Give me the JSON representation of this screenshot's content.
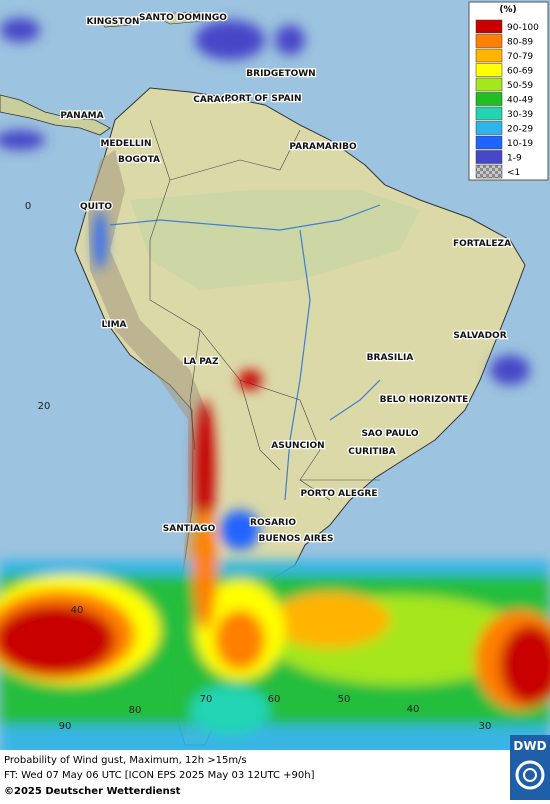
{
  "map": {
    "cities": [
      "KINGSTON",
      "SANTO DOMINGO",
      "BRIDGETOWN",
      "CARACAS",
      "PORT OF SPAIN",
      "PANAMA",
      "MEDELLIN",
      "PARAMARIBO",
      "BOGOTA",
      "QUITO",
      "FORTALEZA",
      "LIMA",
      "SALVADOR",
      "BRASILIA",
      "LA PAZ",
      "BELO HORIZONTE",
      "ASUNCION",
      "SAO PAULO",
      "CURITIBA",
      "PORTO ALEGRE",
      "ROSARIO",
      "SANTIAGO",
      "BUENOS AIRES"
    ],
    "grid_labels": [
      "0",
      "20",
      "40",
      "90",
      "80",
      "70",
      "60",
      "50",
      "40",
      "30"
    ]
  },
  "legend": {
    "title": "(%)",
    "items": [
      {
        "label": "90-100",
        "color": "#c80000"
      },
      {
        "label": "80-89",
        "color": "#ff7f00"
      },
      {
        "label": "70-79",
        "color": "#ffb400"
      },
      {
        "label": "60-69",
        "color": "#ffff00"
      },
      {
        "label": "50-59",
        "color": "#a6e61e"
      },
      {
        "label": "40-49",
        "color": "#1fbf1f"
      },
      {
        "label": "30-39",
        "color": "#22d4b4"
      },
      {
        "label": "20-29",
        "color": "#2eb4e6"
      },
      {
        "label": "10-19",
        "color": "#2064ff"
      },
      {
        "label": "1-9",
        "color": "#4646c8"
      },
      {
        "label": "<1",
        "color": "#9a9a9a"
      }
    ]
  },
  "footer": {
    "line1": "Probability of Wind gust, Maximum, 12h >15m/s",
    "line2": "FT: Wed 07 May 06 UTC [ICON EPS 2025 May 03 12UTC +90h]",
    "line3": "©2025 Deutscher Wetterdienst",
    "logo": "DWD"
  }
}
